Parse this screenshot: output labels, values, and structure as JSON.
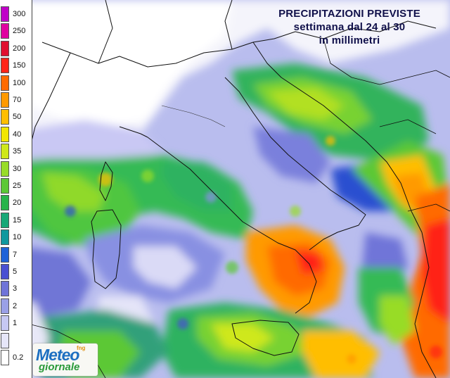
{
  "title": {
    "line1": "PRECIPITAZIONI PREVISTE",
    "line2": "settimana dal 24 al 30",
    "line3": "in millimetri"
  },
  "legend": [
    {
      "label": "300",
      "color": "#c000c8"
    },
    {
      "label": "250",
      "color": "#e000a0"
    },
    {
      "label": "200",
      "color": "#e01030"
    },
    {
      "label": "150",
      "color": "#ff2418"
    },
    {
      "label": "100",
      "color": "#ff6a00"
    },
    {
      "label": "70",
      "color": "#ff9a00"
    },
    {
      "label": "50",
      "color": "#ffbe00"
    },
    {
      "label": "40",
      "color": "#f2e600"
    },
    {
      "label": "35",
      "color": "#cfe81a"
    },
    {
      "label": "30",
      "color": "#98dc28"
    },
    {
      "label": "25",
      "color": "#5cc836"
    },
    {
      "label": "20",
      "color": "#28b44a"
    },
    {
      "label": "15",
      "color": "#18a877"
    },
    {
      "label": "10",
      "color": "#10989e"
    },
    {
      "label": "7",
      "color": "#1e62d8"
    },
    {
      "label": "5",
      "color": "#4a50d2"
    },
    {
      "label": "3",
      "color": "#6f74d8"
    },
    {
      "label": "2",
      "color": "#9aa0e6"
    },
    {
      "label": "1",
      "color": "#c6c8f2"
    },
    {
      "label": "",
      "color": "#e6e6f8"
    },
    {
      "label": "0.2",
      "color": "#ffffff"
    }
  ],
  "logo": {
    "line1": "Meteo",
    "line2": "giornale",
    "mark": "fng"
  }
}
